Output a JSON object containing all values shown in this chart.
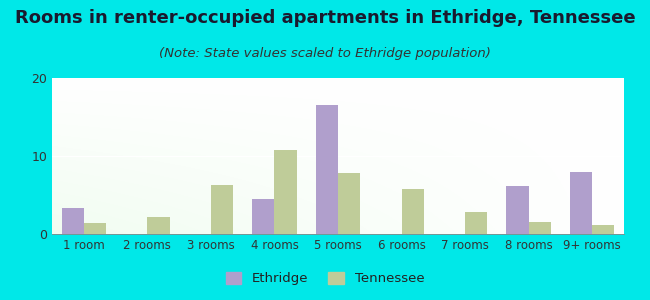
{
  "title": "Rooms in renter-occupied apartments in Ethridge, Tennessee",
  "subtitle": "(Note: State values scaled to Ethridge population)",
  "categories": [
    "1 room",
    "2 rooms",
    "3 rooms",
    "4 rooms",
    "5 rooms",
    "6 rooms",
    "7 rooms",
    "8 rooms",
    "9+ rooms"
  ],
  "ethridge": [
    3.3,
    0,
    0,
    4.5,
    16.5,
    0,
    0,
    6.2,
    8.0
  ],
  "tennessee": [
    1.4,
    2.2,
    6.3,
    10.8,
    7.8,
    5.8,
    2.8,
    1.5,
    1.2
  ],
  "ethridge_color": "#b09fcc",
  "tennessee_color": "#bfcc99",
  "ylim": [
    0,
    20
  ],
  "yticks": [
    0,
    10,
    20
  ],
  "bg_outer": "#00e8e8",
  "title_fontsize": 13,
  "subtitle_fontsize": 9.5,
  "bar_width": 0.35,
  "legend_ethridge": "Ethridge",
  "legend_tennessee": "Tennessee"
}
